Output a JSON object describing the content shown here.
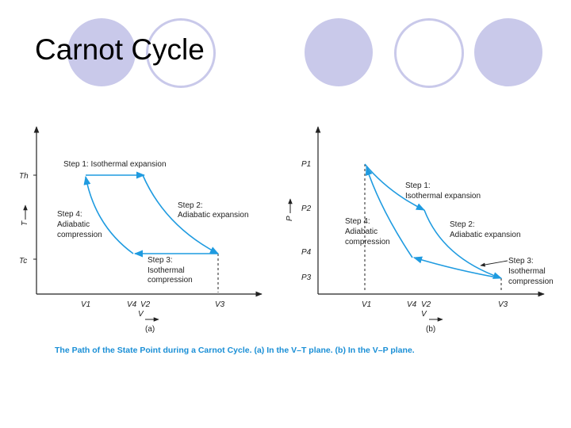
{
  "slide": {
    "title": "Carnot Cycle",
    "accent_color": "#c9c9ea"
  },
  "figure": {
    "line_color": "#1f9be0",
    "caption_color": "#1a8fd6",
    "caption": "The Path of the State Point during a Carnot Cycle. (a) In the V–T plane. (b) In the V–P plane.",
    "panel_a": {
      "label": "(a)",
      "x_axis_label": "V",
      "y_axis_label": "T",
      "y_ticks": {
        "th": "Th",
        "tc": "Tc"
      },
      "x_ticks": {
        "v1": "V1",
        "v4": "V4",
        "v2": "V2",
        "v3": "V3"
      },
      "steps": {
        "step1": "Step 1: Isothermal expansion",
        "step2_title": "Step 2:",
        "step2_body": "Adiabatic expansion",
        "step3_title": "Step 3:",
        "step3_line1": "Isothermal",
        "step3_line2": "compression",
        "step4_title": "Step 4:",
        "step4_line1": "Adiabatic",
        "step4_line2": "compression"
      }
    },
    "panel_b": {
      "label": "(b)",
      "x_axis_label": "V",
      "y_axis_label": "P",
      "y_ticks": {
        "p1": "P1",
        "p2": "P2",
        "p4": "P4",
        "p3": "P3"
      },
      "x_ticks": {
        "v1": "V1",
        "v4": "V4",
        "v2": "V2",
        "v3": "V3"
      },
      "steps": {
        "step1_title": "Step 1:",
        "step1_body": "Isothermal expansion",
        "step2_title": "Step 2:",
        "step2_body": "Adiabatic expansion",
        "step3_title": "Step 3:",
        "step3_line1": "Isothermal",
        "step3_line2": "compression",
        "step4_title": "Step 4:",
        "step4_line1": "Adiabatic",
        "step4_line2": "compression"
      }
    }
  }
}
